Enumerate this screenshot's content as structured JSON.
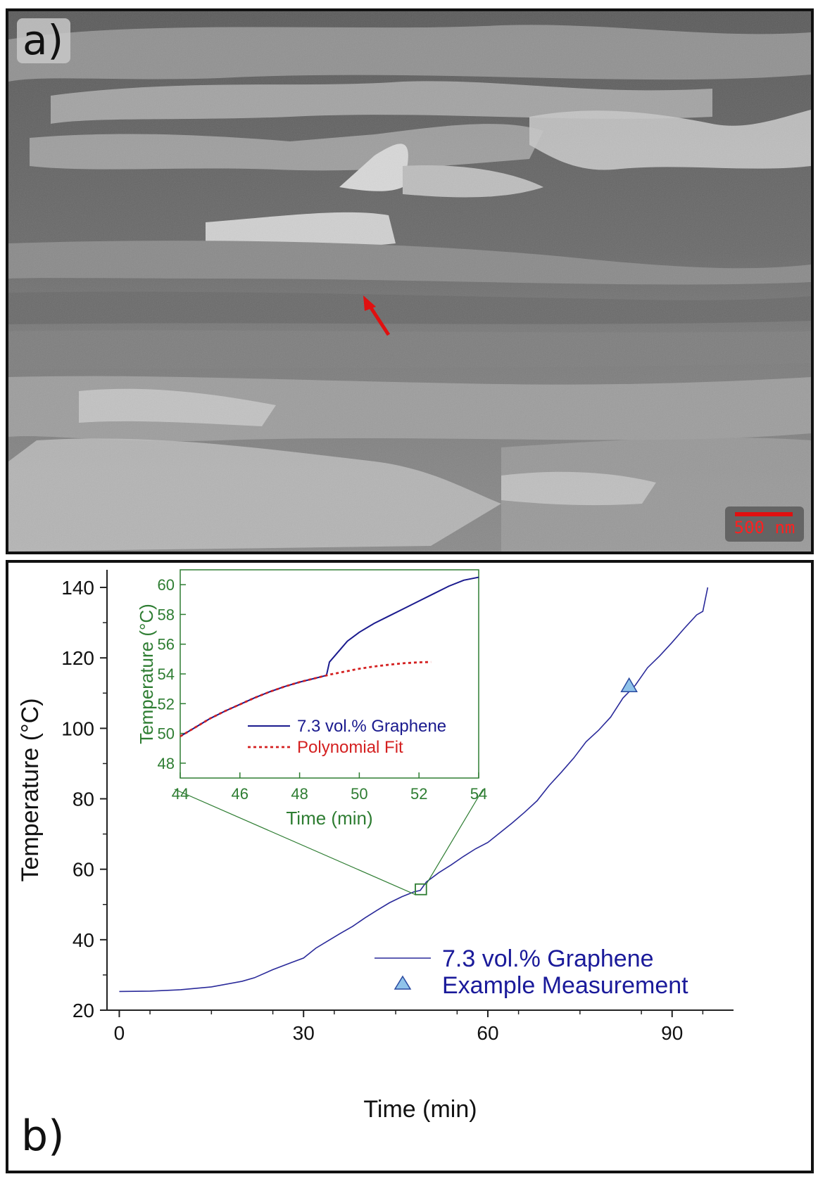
{
  "panel_a": {
    "label": "a)",
    "scale_bar": "500 nm",
    "arrow_color": "#e01010"
  },
  "panel_b": {
    "label": "b)"
  },
  "chart_data": [
    {
      "type": "line",
      "xlabel": "Time (min)",
      "ylabel": "Temperature (°C)",
      "xlim": [
        -2,
        100
      ],
      "ylim": [
        20,
        145
      ],
      "xticks": [
        0,
        30,
        60,
        90
      ],
      "yticks": [
        20,
        40,
        60,
        80,
        100,
        120,
        140
      ],
      "legend_position": "bottom-right",
      "series": [
        {
          "name": "7.3 vol.% Graphene",
          "color": "#2a2a9a",
          "x": [
            0,
            5,
            10,
            15,
            20,
            22,
            25,
            28,
            30,
            32,
            34,
            36,
            38,
            40,
            42,
            44,
            46,
            48,
            49,
            50,
            52,
            54,
            56,
            58,
            60,
            62,
            64,
            66,
            68,
            70,
            72,
            74,
            76,
            78,
            80,
            82,
            84,
            86,
            88,
            90,
            92,
            94,
            95,
            95.8
          ],
          "values": [
            25.3,
            25.4,
            25.8,
            26.6,
            28.2,
            29.2,
            31.5,
            33.5,
            34.8,
            37.6,
            39.7,
            41.8,
            43.8,
            46.2,
            48.4,
            50.5,
            52.2,
            53.6,
            54.0,
            56.4,
            59.0,
            61.2,
            63.6,
            65.8,
            67.6,
            70.4,
            73.2,
            76.2,
            79.4,
            83.8,
            87.6,
            91.6,
            96.2,
            99.4,
            103.2,
            108.6,
            112.2,
            117.2,
            120.6,
            124.4,
            128.4,
            132.2,
            133.2,
            140.0
          ]
        },
        {
          "name": "Example Measurement",
          "type": "scatter",
          "marker": "triangle",
          "color": "#8fc3ea",
          "x": [
            83
          ],
          "values": [
            112
          ]
        }
      ],
      "zoom_box": {
        "x": [
          48.2,
          50.0
        ],
        "y": [
          52.8,
          55.8
        ]
      }
    },
    {
      "type": "line",
      "inset": true,
      "xlabel": "Time (min)",
      "ylabel": "Temperature (°C)",
      "xlim": [
        44,
        54
      ],
      "ylim": [
        47,
        61
      ],
      "xticks": [
        44,
        46,
        48,
        50,
        52,
        54
      ],
      "yticks": [
        48,
        50,
        52,
        54,
        56,
        58,
        60
      ],
      "legend_position": "bottom-center",
      "axis_color": "#2e7d32",
      "series": [
        {
          "name": "7.3 vol.% Graphene",
          "color": "#1a1a8e",
          "x": [
            44,
            44.5,
            45,
            45.5,
            46,
            46.5,
            47,
            47.5,
            48,
            48.5,
            48.9,
            49.0,
            49.3,
            49.6,
            50,
            50.5,
            51,
            51.5,
            52,
            52.5,
            53,
            53.5,
            54
          ],
          "values": [
            49.8,
            50.4,
            51.0,
            51.5,
            51.95,
            52.4,
            52.8,
            53.15,
            53.45,
            53.7,
            53.9,
            54.8,
            55.5,
            56.2,
            56.8,
            57.4,
            57.9,
            58.4,
            58.9,
            59.4,
            59.9,
            60.3,
            60.5
          ]
        },
        {
          "name": "Polynomial Fit",
          "color": "#d42020",
          "dashed": true,
          "x": [
            44,
            44.5,
            45,
            45.5,
            46,
            46.5,
            47,
            47.5,
            48,
            48.5,
            49,
            49.5,
            50,
            50.5,
            51,
            51.5,
            52,
            52.4
          ],
          "values": [
            49.8,
            50.4,
            51.0,
            51.5,
            51.95,
            52.4,
            52.8,
            53.15,
            53.45,
            53.7,
            53.95,
            54.15,
            54.35,
            54.5,
            54.62,
            54.72,
            54.78,
            54.8
          ]
        }
      ]
    }
  ]
}
